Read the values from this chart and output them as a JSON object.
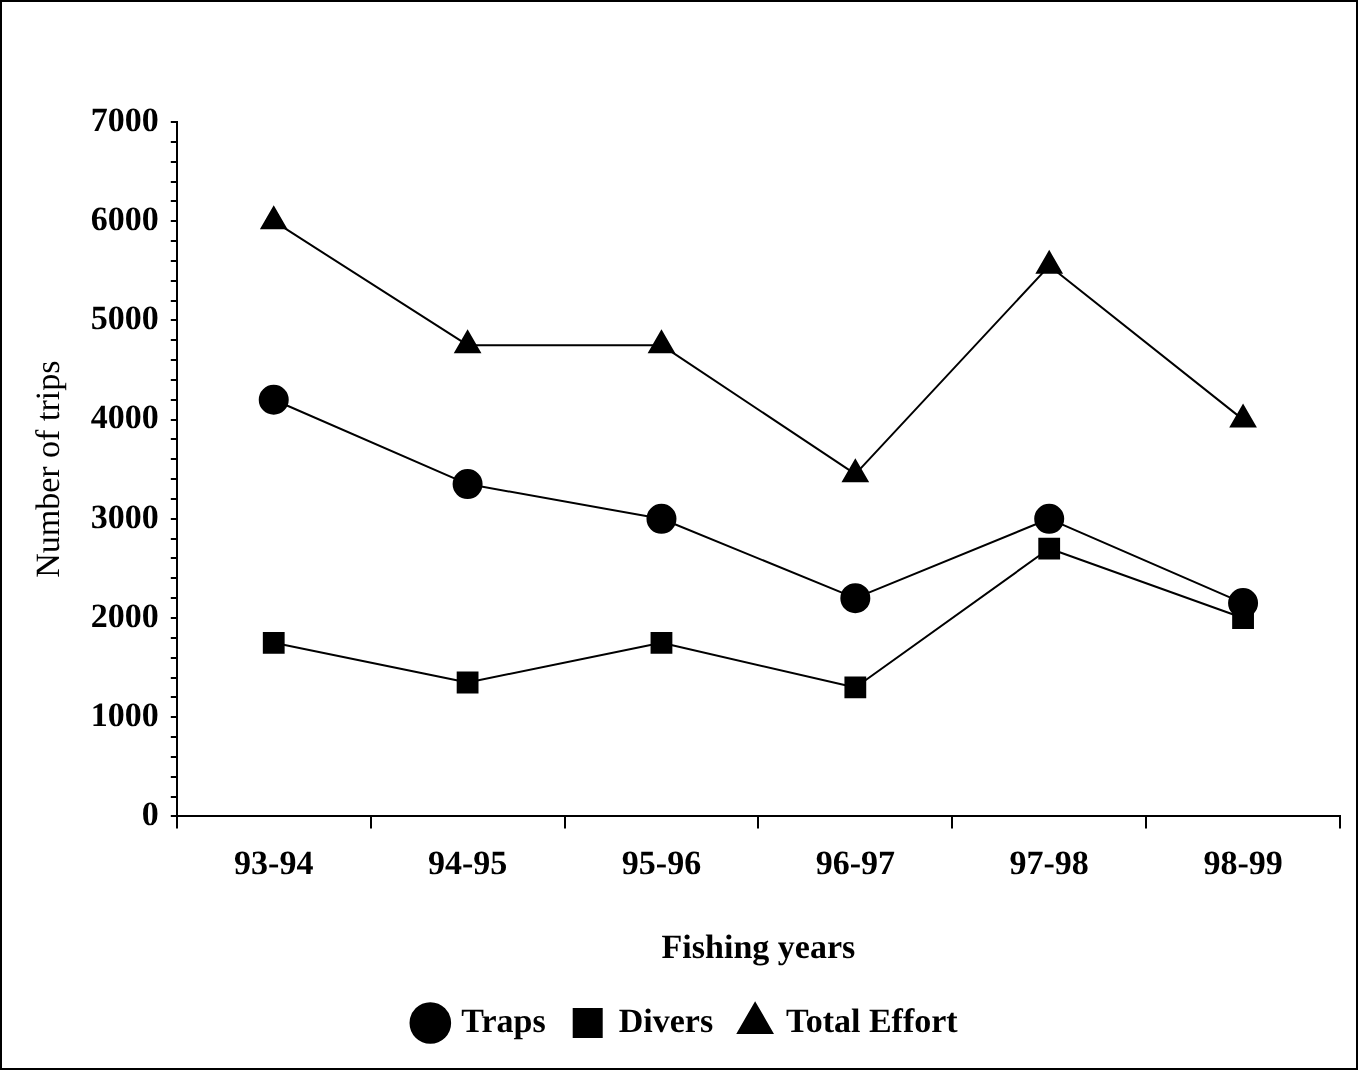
{
  "chart_data": {
    "type": "line",
    "xlabel": "Fishing years",
    "ylabel": "Number of trips",
    "categories": [
      "93-94",
      "94-95",
      "95-96",
      "96-97",
      "97-98",
      "98-99"
    ],
    "series": [
      {
        "name": "Traps",
        "color": "#000000",
        "marker": "circle",
        "values": [
          4200,
          3350,
          3000,
          2200,
          3000,
          2150
        ]
      },
      {
        "name": "Divers",
        "color": "#000000",
        "marker": "square",
        "values": [
          1750,
          1350,
          1750,
          1300,
          2700,
          2000
        ]
      },
      {
        "name": "Total Effort",
        "color": "#000000",
        "marker": "triangle",
        "values": [
          6000,
          4750,
          4750,
          3450,
          5550,
          4000
        ]
      }
    ],
    "ylim": [
      0,
      7000
    ],
    "yticks": [
      0,
      {
        "value": 200,
        "label": null
      },
      {
        "value": 400,
        "label": null
      },
      {
        "value": 600,
        "label": null
      },
      {
        "value": 800,
        "label": null
      },
      1000,
      {
        "value": 1200,
        "label": null
      },
      {
        "value": 1400,
        "label": null
      },
      {
        "value": 1600,
        "label": null
      },
      {
        "value": 1800,
        "label": null
      },
      2000,
      {
        "value": 2200,
        "label": null
      },
      {
        "value": 2400,
        "label": null
      },
      {
        "value": 2600,
        "label": null
      },
      {
        "value": 2800,
        "label": null
      },
      3000,
      {
        "value": 3200,
        "label": null
      },
      {
        "value": 3400,
        "label": null
      },
      {
        "value": 3600,
        "label": null
      },
      {
        "value": 3800,
        "label": null
      },
      4000,
      {
        "value": 4200,
        "label": null
      },
      {
        "value": 4400,
        "label": null
      },
      {
        "value": 4600,
        "label": null
      },
      {
        "value": 4800,
        "label": null
      },
      5000,
      {
        "value": 5200,
        "label": null
      },
      {
        "value": 5400,
        "label": null
      },
      {
        "value": 5600,
        "label": null
      },
      {
        "value": 5800,
        "label": null
      },
      6000,
      {
        "value": 6200,
        "label": null
      },
      {
        "value": 6400,
        "label": null
      },
      {
        "value": 6600,
        "label": null
      },
      {
        "value": 6800,
        "label": null
      },
      7000
    ],
    "grid": false,
    "legend": "bottom",
    "line_style": "solid"
  }
}
